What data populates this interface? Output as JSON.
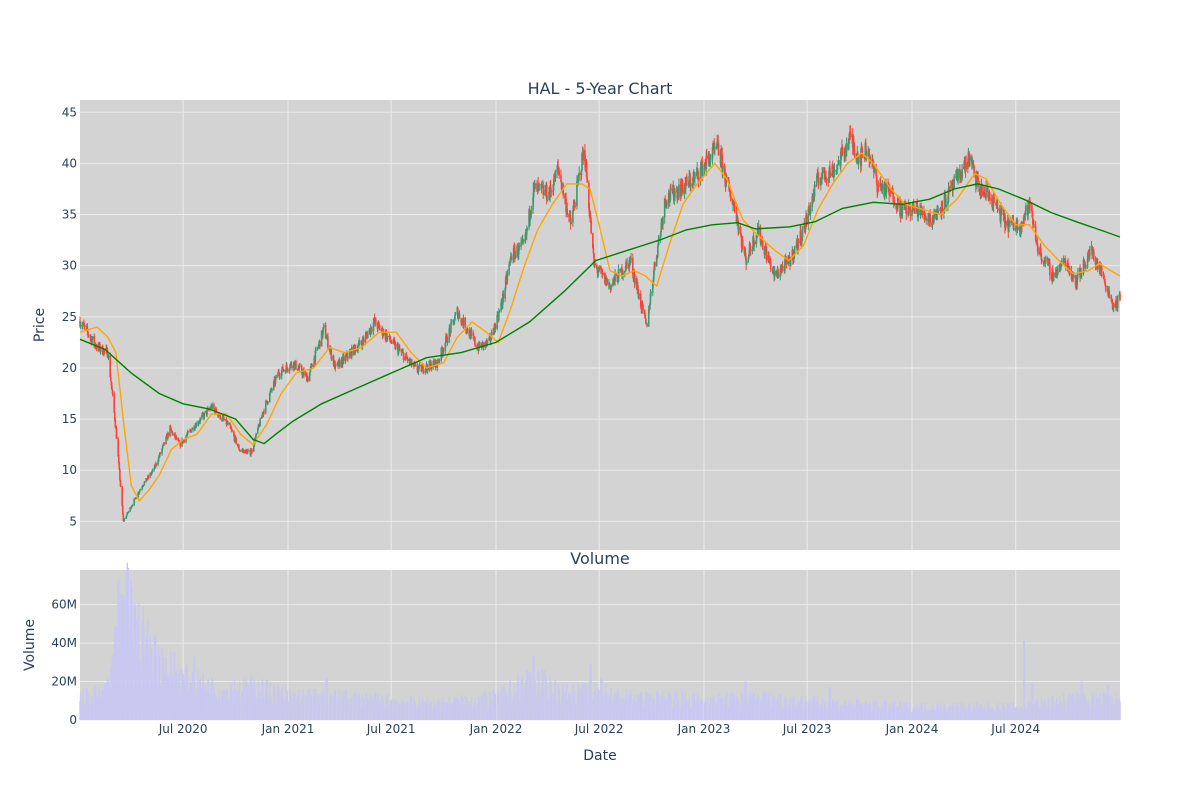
{
  "colors": {
    "plot_bg": "#d3d3d3",
    "grid": "#ebebeb",
    "up_candle": "#3d9970",
    "down_candle": "#ff4136",
    "ma_short": "#ffa500",
    "ma_long": "#008000",
    "volume_bar": "#c8c8f0",
    "text": "#2a3f5f"
  },
  "chart_data": [
    {
      "type": "candlestick",
      "title": "HAL - 5-Year Chart",
      "ylabel": "Price",
      "xlabel": "",
      "ylim": [
        2.2,
        46.2
      ],
      "xlim": [
        "2020-01-02",
        "2024-12-31"
      ],
      "y_ticks": [
        5,
        10,
        15,
        20,
        25,
        30,
        35,
        40,
        45
      ],
      "grid": true,
      "price_anchors": [
        [
          "2020-01-02",
          24.6
        ],
        [
          "2020-02-01",
          22.0
        ],
        [
          "2020-02-20",
          21.5
        ],
        [
          "2020-03-05",
          14.0
        ],
        [
          "2020-03-18",
          5.0
        ],
        [
          "2020-04-01",
          6.5
        ],
        [
          "2020-04-20",
          8.5
        ],
        [
          "2020-05-10",
          10.0
        ],
        [
          "2020-06-08",
          14.0
        ],
        [
          "2020-06-25",
          12.5
        ],
        [
          "2020-07-20",
          14.3
        ],
        [
          "2020-08-20",
          16.2
        ],
        [
          "2020-09-20",
          14.3
        ],
        [
          "2020-10-08",
          12.0
        ],
        [
          "2020-10-28",
          11.7
        ],
        [
          "2020-11-20",
          16.0
        ],
        [
          "2020-12-15",
          19.5
        ],
        [
          "2021-01-10",
          20.5
        ],
        [
          "2021-02-05",
          19.0
        ],
        [
          "2021-03-05",
          23.8
        ],
        [
          "2021-03-25",
          20.0
        ],
        [
          "2021-05-15",
          22.8
        ],
        [
          "2021-06-01",
          24.5
        ],
        [
          "2021-07-10",
          22.0
        ],
        [
          "2021-08-15",
          19.8
        ],
        [
          "2021-09-20",
          20.5
        ],
        [
          "2021-10-25",
          25.5
        ],
        [
          "2021-11-30",
          22.0
        ],
        [
          "2021-12-20",
          22.5
        ],
        [
          "2022-01-10",
          26.0
        ],
        [
          "2022-01-28",
          31.0
        ],
        [
          "2022-02-20",
          32.0
        ],
        [
          "2022-03-08",
          37.5
        ],
        [
          "2022-04-05",
          37.0
        ],
        [
          "2022-04-20",
          39.5
        ],
        [
          "2022-05-12",
          34.0
        ],
        [
          "2022-06-05",
          41.5
        ],
        [
          "2022-06-22",
          30.0
        ],
        [
          "2022-07-20",
          28.0
        ],
        [
          "2022-08-25",
          30.5
        ],
        [
          "2022-09-22",
          24.0
        ],
        [
          "2022-10-05",
          29.5
        ],
        [
          "2022-10-25",
          36.5
        ],
        [
          "2022-11-20",
          37.5
        ],
        [
          "2022-12-15",
          38.5
        ],
        [
          "2023-01-10",
          40.5
        ],
        [
          "2023-01-26",
          41.5
        ],
        [
          "2023-02-10",
          38.0
        ],
        [
          "2023-02-25",
          35.5
        ],
        [
          "2023-03-15",
          30.5
        ],
        [
          "2023-04-05",
          33.5
        ],
        [
          "2023-05-05",
          29.0
        ],
        [
          "2023-06-01",
          30.5
        ],
        [
          "2023-06-25",
          33.5
        ],
        [
          "2023-07-20",
          38.5
        ],
        [
          "2023-08-20",
          39.5
        ],
        [
          "2023-09-15",
          42.5
        ],
        [
          "2023-10-01",
          40.5
        ],
        [
          "2023-10-15",
          41.5
        ],
        [
          "2023-11-01",
          38.0
        ],
        [
          "2023-11-30",
          36.8
        ],
        [
          "2023-12-12",
          35.5
        ],
        [
          "2024-01-10",
          35.5
        ],
        [
          "2024-02-05",
          34.5
        ],
        [
          "2024-03-01",
          36.5
        ],
        [
          "2024-04-10",
          40.5
        ],
        [
          "2024-04-28",
          37.5
        ],
        [
          "2024-05-20",
          36.5
        ],
        [
          "2024-06-15",
          34.0
        ],
        [
          "2024-07-10",
          34.0
        ],
        [
          "2024-07-25",
          36.0
        ],
        [
          "2024-08-10",
          31.5
        ],
        [
          "2024-09-05",
          29.0
        ],
        [
          "2024-09-25",
          30.5
        ],
        [
          "2024-10-15",
          28.5
        ],
        [
          "2024-11-10",
          31.5
        ],
        [
          "2024-12-01",
          29.0
        ],
        [
          "2024-12-20",
          26.0
        ],
        [
          "2024-12-31",
          26.8
        ]
      ],
      "series": [
        {
          "type": "line",
          "points": [
            [
              "2020-01-02",
              23.5
            ],
            [
              "2020-02-01",
              24.0
            ],
            [
              "2020-02-20",
              23.0
            ],
            [
              "2020-03-05",
              21.5
            ],
            [
              "2020-03-20",
              14.0
            ],
            [
              "2020-04-01",
              8.5
            ],
            [
              "2020-04-15",
              7.0
            ],
            [
              "2020-05-01",
              8.0
            ],
            [
              "2020-05-20",
              9.5
            ],
            [
              "2020-06-10",
              12.0
            ],
            [
              "2020-07-01",
              13.0
            ],
            [
              "2020-07-25",
              13.5
            ],
            [
              "2020-08-20",
              15.5
            ],
            [
              "2020-09-15",
              15.5
            ],
            [
              "2020-10-10",
              13.5
            ],
            [
              "2020-11-01",
              12.5
            ],
            [
              "2020-11-25",
              14.5
            ],
            [
              "2020-12-20",
              17.5
            ],
            [
              "2021-01-15",
              19.5
            ],
            [
              "2021-02-15",
              20.0
            ],
            [
              "2021-03-15",
              22.0
            ],
            [
              "2021-04-10",
              21.5
            ],
            [
              "2021-05-10",
              22.0
            ],
            [
              "2021-06-10",
              23.5
            ],
            [
              "2021-07-10",
              23.5
            ],
            [
              "2021-08-05",
              21.5
            ],
            [
              "2021-09-01",
              20.0
            ],
            [
              "2021-10-01",
              20.5
            ],
            [
              "2021-10-25",
              23.0
            ],
            [
              "2021-11-20",
              24.5
            ],
            [
              "2021-12-15",
              23.5
            ],
            [
              "2022-01-05",
              22.5
            ],
            [
              "2022-01-25",
              25.5
            ],
            [
              "2022-02-20",
              30.0
            ],
            [
              "2022-03-15",
              33.5
            ],
            [
              "2022-04-10",
              36.0
            ],
            [
              "2022-05-05",
              38.0
            ],
            [
              "2022-06-01",
              38.0
            ],
            [
              "2022-06-15",
              37.5
            ],
            [
              "2022-07-01",
              34.0
            ],
            [
              "2022-07-20",
              29.5
            ],
            [
              "2022-08-10",
              29.0
            ],
            [
              "2022-09-01",
              29.5
            ],
            [
              "2022-09-20",
              29.0
            ],
            [
              "2022-10-10",
              28.0
            ],
            [
              "2022-11-01",
              32.0
            ],
            [
              "2022-11-25",
              36.0
            ],
            [
              "2022-12-20",
              38.0
            ],
            [
              "2023-01-20",
              40.0
            ],
            [
              "2023-02-10",
              38.5
            ],
            [
              "2023-03-10",
              34.5
            ],
            [
              "2023-04-05",
              33.0
            ],
            [
              "2023-05-05",
              31.5
            ],
            [
              "2023-05-30",
              30.5
            ],
            [
              "2023-06-25",
              32.0
            ],
            [
              "2023-07-20",
              35.5
            ],
            [
              "2023-08-15",
              38.0
            ],
            [
              "2023-09-10",
              40.0
            ],
            [
              "2023-10-05",
              41.0
            ],
            [
              "2023-10-25",
              40.0
            ],
            [
              "2023-11-25",
              37.5
            ],
            [
              "2023-12-20",
              36.0
            ],
            [
              "2024-01-20",
              35.5
            ],
            [
              "2024-02-20",
              35.0
            ],
            [
              "2024-03-20",
              36.5
            ],
            [
              "2024-04-20",
              39.0
            ],
            [
              "2024-05-10",
              38.5
            ],
            [
              "2024-06-05",
              36.0
            ],
            [
              "2024-07-01",
              34.0
            ],
            [
              "2024-07-25",
              34.0
            ],
            [
              "2024-08-20",
              32.0
            ],
            [
              "2024-09-15",
              30.5
            ],
            [
              "2024-10-10",
              29.2
            ],
            [
              "2024-11-05",
              29.5
            ],
            [
              "2024-11-25",
              30.2
            ],
            [
              "2024-12-15",
              29.5
            ],
            [
              "2024-12-31",
              29.0
            ]
          ]
        },
        {
          "type": "line",
          "points": [
            [
              "2020-01-02",
              22.8
            ],
            [
              "2020-02-15",
              21.8
            ],
            [
              "2020-04-01",
              19.5
            ],
            [
              "2020-05-20",
              17.5
            ],
            [
              "2020-07-01",
              16.5
            ],
            [
              "2020-08-15",
              16.0
            ],
            [
              "2020-10-01",
              15.0
            ],
            [
              "2020-11-01",
              13.0
            ],
            [
              "2020-11-20",
              12.6
            ],
            [
              "2020-12-10",
              13.5
            ],
            [
              "2021-01-10",
              14.8
            ],
            [
              "2021-03-01",
              16.5
            ],
            [
              "2021-05-01",
              18.0
            ],
            [
              "2021-07-01",
              19.5
            ],
            [
              "2021-09-01",
              21.0
            ],
            [
              "2021-11-01",
              21.5
            ],
            [
              "2022-01-01",
              22.5
            ],
            [
              "2022-03-01",
              24.5
            ],
            [
              "2022-05-01",
              27.5
            ],
            [
              "2022-06-25",
              30.5
            ],
            [
              "2022-08-20",
              31.5
            ],
            [
              "2022-10-15",
              32.5
            ],
            [
              "2022-12-01",
              33.5
            ],
            [
              "2023-01-15",
              34.0
            ],
            [
              "2023-03-01",
              34.2
            ],
            [
              "2023-04-01",
              33.6
            ],
            [
              "2023-06-01",
              33.8
            ],
            [
              "2023-07-15",
              34.3
            ],
            [
              "2023-09-01",
              35.6
            ],
            [
              "2023-10-25",
              36.2
            ],
            [
              "2023-12-15",
              36.0
            ],
            [
              "2024-02-01",
              36.5
            ],
            [
              "2024-03-15",
              37.5
            ],
            [
              "2024-04-25",
              38.0
            ],
            [
              "2024-06-01",
              37.5
            ],
            [
              "2024-07-15",
              36.5
            ],
            [
              "2024-09-01",
              35.2
            ],
            [
              "2024-10-20",
              34.2
            ],
            [
              "2024-12-01",
              33.4
            ],
            [
              "2024-12-31",
              32.8
            ]
          ]
        }
      ]
    },
    {
      "type": "bar",
      "title": "Volume",
      "xlabel": "Date",
      "ylabel": "Volume",
      "ylim": [
        0,
        78
      ],
      "y_ticks": [
        0,
        20,
        40,
        60
      ],
      "y_tick_labels": [
        "0",
        "20M",
        "40M",
        "60M"
      ],
      "x_ticks": [
        "2020-07-01",
        "2021-01-01",
        "2021-07-01",
        "2022-01-01",
        "2022-07-01",
        "2023-01-01",
        "2023-07-01",
        "2024-01-01",
        "2024-07-01"
      ],
      "x_tick_labels": [
        "Jul 2020",
        "Jan 2021",
        "Jul 2021",
        "Jan 2022",
        "Jul 2022",
        "Jan 2023",
        "Jul 2023",
        "Jan 2024",
        "Jul 2024"
      ],
      "grid": true,
      "volume_anchors_millions": [
        [
          "2020-01-02",
          12
        ],
        [
          "2020-02-15",
          14
        ],
        [
          "2020-03-10",
          45
        ],
        [
          "2020-03-25",
          62
        ],
        [
          "2020-04-20",
          45
        ],
        [
          "2020-05-20",
          32
        ],
        [
          "2020-07-01",
          22
        ],
        [
          "2020-09-01",
          16
        ],
        [
          "2020-11-01",
          18
        ],
        [
          "2021-01-01",
          13
        ],
        [
          "2021-04-01",
          12
        ],
        [
          "2021-07-01",
          10
        ],
        [
          "2021-10-01",
          9
        ],
        [
          "2022-01-01",
          12
        ],
        [
          "2022-03-10",
          22
        ],
        [
          "2022-05-01",
          14
        ],
        [
          "2022-07-01",
          15
        ],
        [
          "2022-09-01",
          11
        ],
        [
          "2022-11-01",
          12
        ],
        [
          "2023-01-01",
          10
        ],
        [
          "2023-04-01",
          12
        ],
        [
          "2023-07-01",
          10
        ],
        [
          "2023-10-01",
          8
        ],
        [
          "2024-01-01",
          7
        ],
        [
          "2024-04-01",
          7
        ],
        [
          "2024-07-01",
          7
        ],
        [
          "2024-10-01",
          11
        ],
        [
          "2024-12-31",
          11
        ]
      ],
      "volume_spikes_millions": [
        [
          "2020-03-09",
          73
        ],
        [
          "2020-03-20",
          63
        ],
        [
          "2020-04-06",
          61
        ],
        [
          "2020-06-15",
          35
        ],
        [
          "2020-07-20",
          33
        ],
        [
          "2021-03-10",
          22
        ],
        [
          "2022-02-25",
          26
        ],
        [
          "2022-03-08",
          33
        ],
        [
          "2022-06-16",
          29
        ],
        [
          "2022-07-05",
          22
        ],
        [
          "2023-03-15",
          20
        ],
        [
          "2023-08-10",
          17
        ],
        [
          "2024-07-15",
          42
        ],
        [
          "2024-07-30",
          19
        ],
        [
          "2024-10-25",
          20
        ],
        [
          "2024-12-10",
          18
        ]
      ]
    }
  ]
}
